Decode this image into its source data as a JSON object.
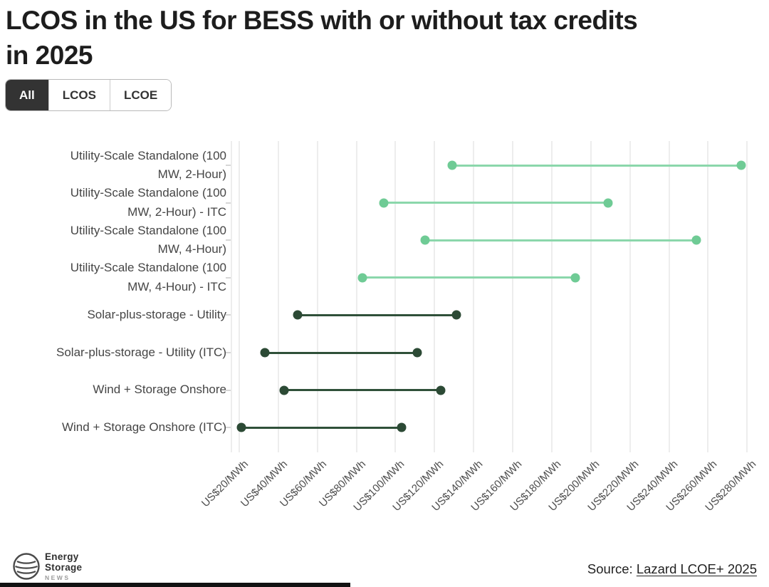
{
  "header": {
    "title_lines": [
      "LCOS in the US for BESS with or without tax credits",
      "in 2025"
    ],
    "title": "LCOS in the US for BESS with or without tax credits in 2025"
  },
  "toggle": {
    "tabs": [
      {
        "label": "All",
        "active": true
      },
      {
        "label": "LCOS",
        "active": false
      },
      {
        "label": "LCOE",
        "active": false
      }
    ]
  },
  "chart_data": {
    "type": "scatter",
    "subtype": "dumbbell-range",
    "title": "LCOS in the US for BESS with or without tax credits in 2025",
    "xlabel": "",
    "ylabel": "",
    "x_unit": "US$/MWh",
    "xlim": [
      16,
      285
    ],
    "grid": "vertical",
    "legend": "none",
    "x_ticks": [
      {
        "value": 20,
        "label": "US$20/MWh"
      },
      {
        "value": 40,
        "label": "US$40/MWh"
      },
      {
        "value": 60,
        "label": "US$60/MWh"
      },
      {
        "value": 80,
        "label": "US$80/MWh"
      },
      {
        "value": 100,
        "label": "US$100/MWh"
      },
      {
        "value": 120,
        "label": "US$120/MWh"
      },
      {
        "value": 140,
        "label": "US$140/MWh"
      },
      {
        "value": 160,
        "label": "US$160/MWh"
      },
      {
        "value": 180,
        "label": "US$180/MWh"
      },
      {
        "value": 200,
        "label": "US$200/MWh"
      },
      {
        "value": 220,
        "label": "US$220/MWh"
      },
      {
        "value": 240,
        "label": "US$240/MWh"
      },
      {
        "value": 260,
        "label": "US$260/MWh"
      },
      {
        "value": 280,
        "label": "US$280/MWh"
      }
    ],
    "series": [
      {
        "name": "LCOS",
        "color_dot": "#6fcb95",
        "color_line": "#8bd7ab",
        "points": [
          {
            "label": "Utility-Scale Standalone (100 MW, 2-Hour)",
            "label_lines": [
              "Utility-Scale Standalone (100",
              "MW, 2-Hour)"
            ],
            "low": 129,
            "high": 277
          },
          {
            "label": "Utility-Scale Standalone (100 MW, 2-Hour) - ITC",
            "label_lines": [
              "Utility-Scale Standalone (100",
              "MW, 2-Hour) - ITC"
            ],
            "low": 94,
            "high": 209
          },
          {
            "label": "Utility-Scale Standalone (100 MW, 4-Hour)",
            "label_lines": [
              "Utility-Scale Standalone (100",
              "MW, 4-Hour)"
            ],
            "low": 115,
            "high": 254
          },
          {
            "label": "Utility-Scale Standalone (100 MW, 4-Hour) - ITC",
            "label_lines": [
              "Utility-Scale Standalone (100",
              "MW, 4-Hour) - ITC"
            ],
            "low": 83,
            "high": 192
          }
        ]
      },
      {
        "name": "LCOE",
        "color_dot": "#2c4a35",
        "color_line": "#2f5039",
        "points": [
          {
            "label": "Solar-plus-storage - Utility",
            "label_lines": [
              "Solar-plus-storage - Utility"
            ],
            "low": 50,
            "high": 131
          },
          {
            "label": "Solar-plus-storage - Utility (ITC)",
            "label_lines": [
              "Solar-plus-storage - Utility (ITC)"
            ],
            "low": 33,
            "high": 111
          },
          {
            "label": "Wind + Storage Onshore",
            "label_lines": [
              "Wind + Storage Onshore"
            ],
            "low": 43,
            "high": 123
          },
          {
            "label": "Wind + Storage Onshore (ITC)",
            "label_lines": [
              "Wind + Storage Onshore (ITC)"
            ],
            "low": 21,
            "high": 103
          }
        ]
      }
    ]
  },
  "footer": {
    "logo": {
      "word1": "Energy",
      "word2": "Storage",
      "word3": "NEWS"
    },
    "source_prefix": "Source: ",
    "source_link_text": "Lazard LCOE+ 2025"
  },
  "colors": {
    "grid": "#ededed",
    "category_label": "#454545",
    "tick_label": "#4d4d4d",
    "title": "#1d1d1d",
    "tab_active_bg": "#333333",
    "tab_active_fg": "#ffffff",
    "light_green_dot": "#6fcb95",
    "light_green_line": "#8bd7ab",
    "dark_green_dot": "#2c4a35",
    "dark_green_line": "#2f5039"
  }
}
